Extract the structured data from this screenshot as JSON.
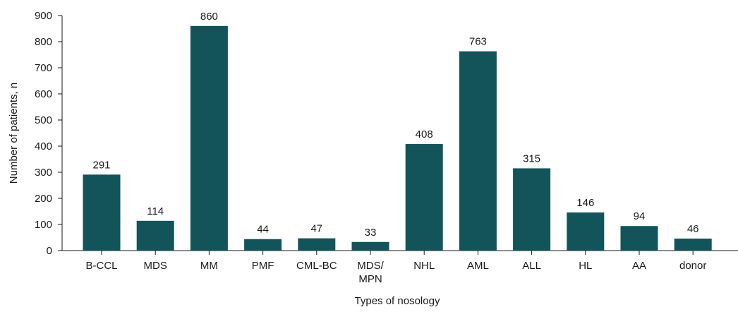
{
  "chart_data": {
    "type": "bar",
    "categories": [
      "B-CCL",
      "MDS",
      "MM",
      "PMF",
      "CML-BC",
      "MDS/\nMPN",
      "NHL",
      "AML",
      "ALL",
      "HL",
      "AA",
      "donor"
    ],
    "values": [
      291,
      114,
      860,
      44,
      47,
      33,
      408,
      763,
      315,
      146,
      94,
      46
    ],
    "data_labels": [
      "291",
      "114",
      "860",
      "44",
      "47",
      "33",
      "408",
      "763",
      "315",
      "146",
      "94",
      "46"
    ],
    "xlabel": "Types of nosology",
    "ylabel": "Number of patients, n",
    "ylim": [
      0,
      900
    ],
    "yticks": [
      "0",
      "100",
      "200",
      "300",
      "400",
      "500",
      "600",
      "700",
      "800",
      "900"
    ],
    "grid": false,
    "bar_color": "#12545a"
  }
}
